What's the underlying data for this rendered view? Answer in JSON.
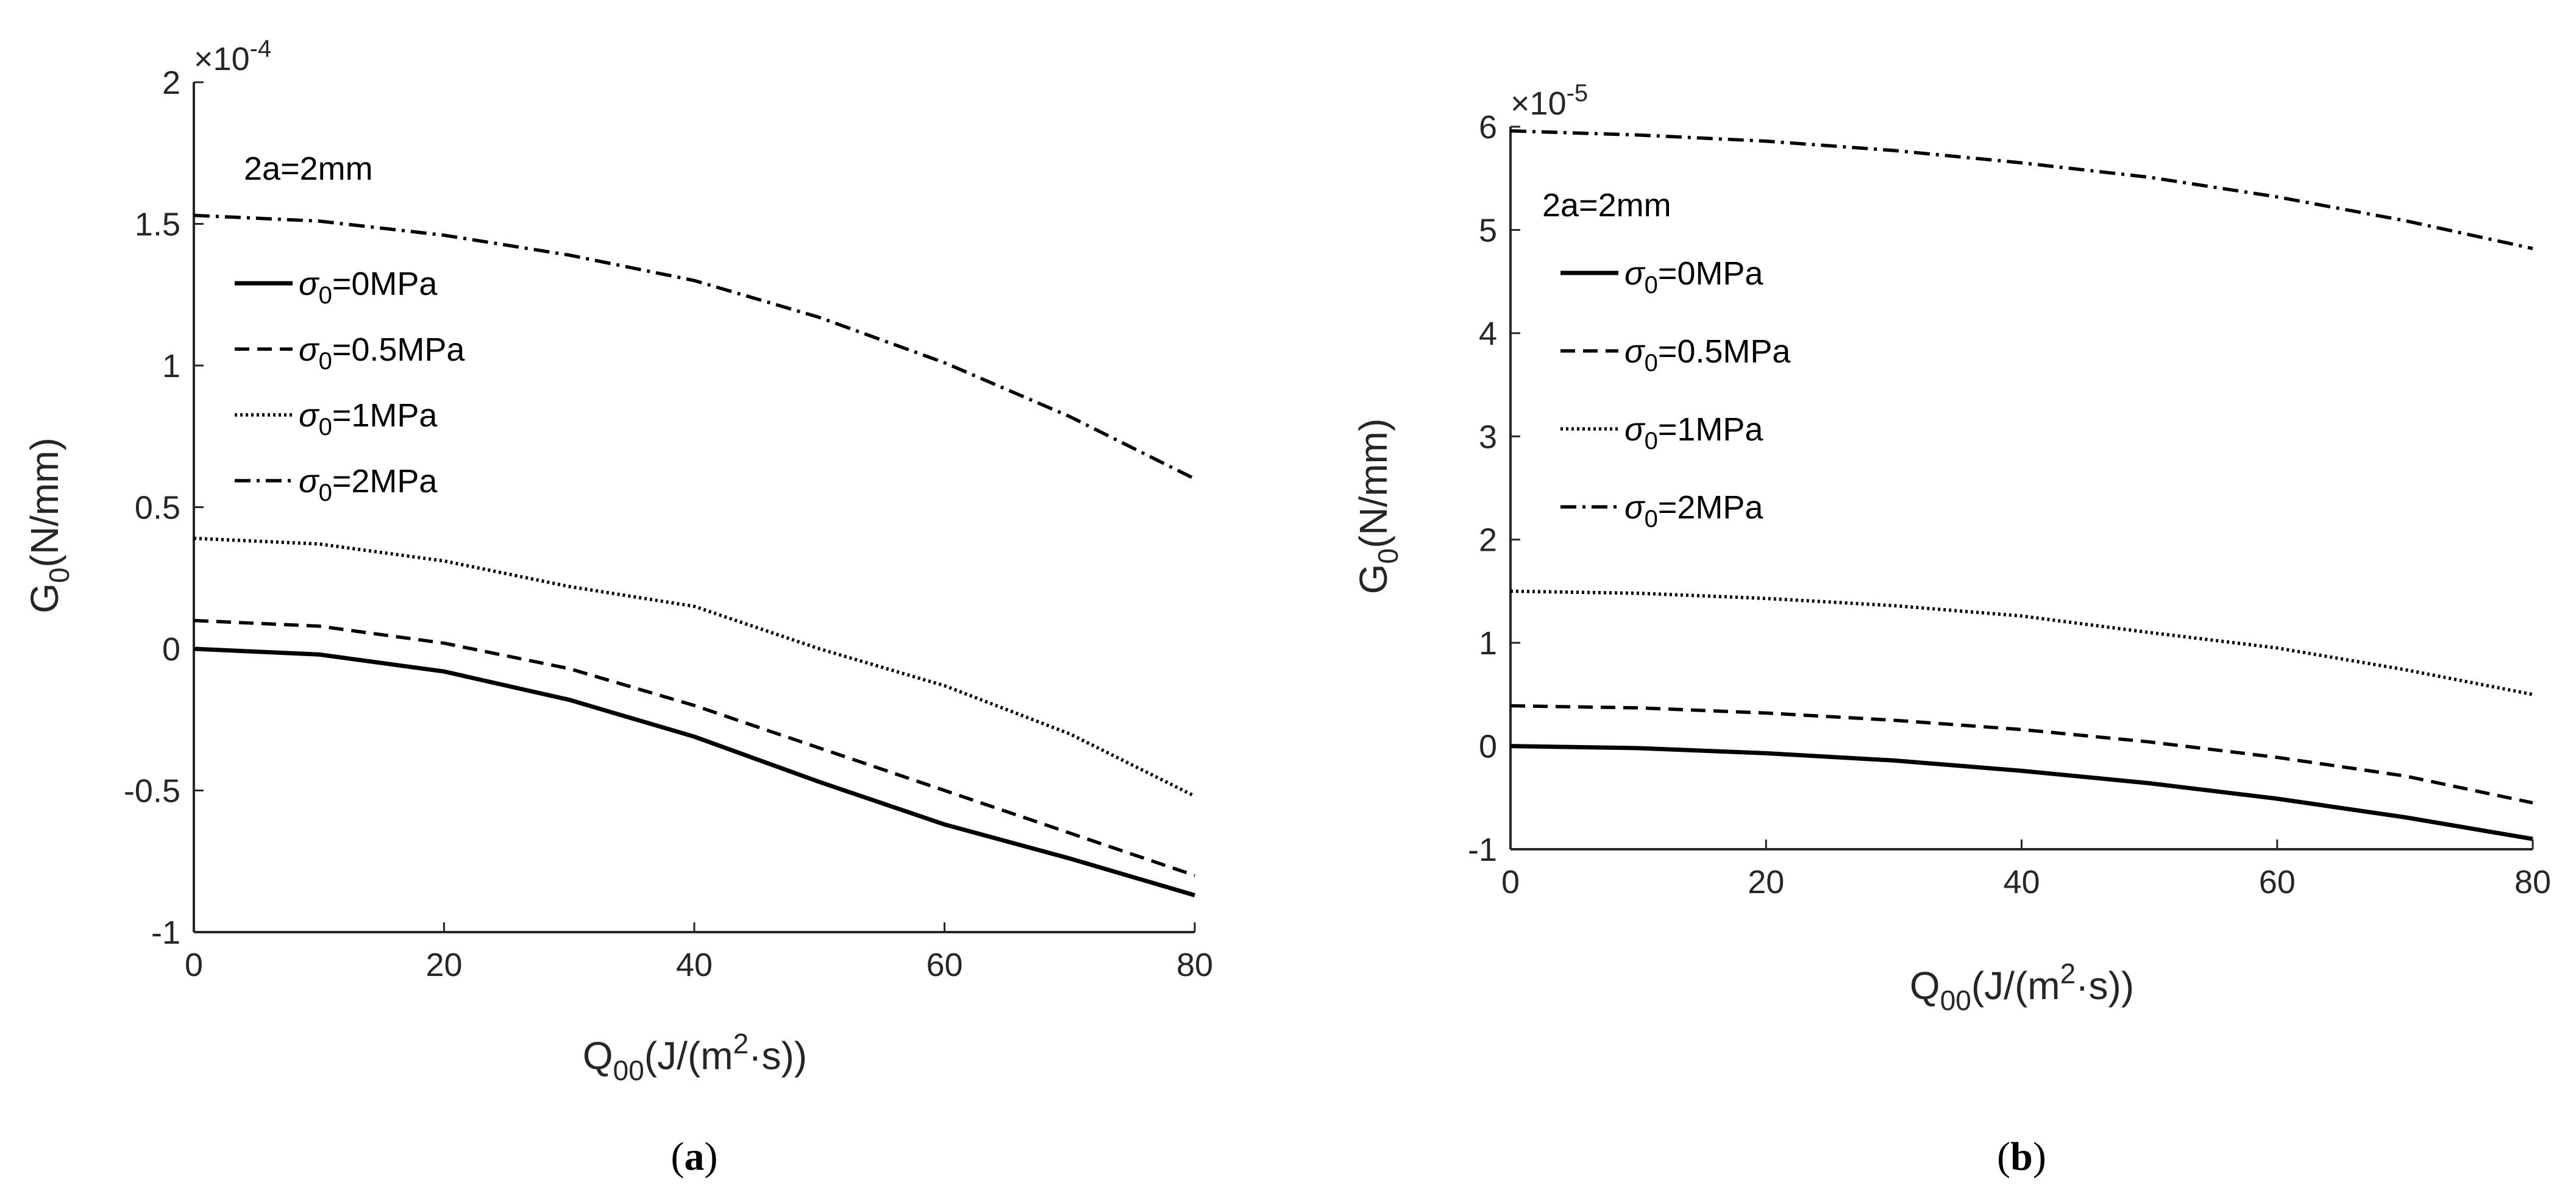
{
  "chart_data": [
    {
      "type": "line",
      "panel": "a",
      "annotation": "2a=2mm",
      "exponent": "-4",
      "exponent_prefix": "×10",
      "xlabel": {
        "base": "Q",
        "sub": "00",
        "unit_pre": "(J/(m",
        "sup": "2",
        "unit_post": "·s))"
      },
      "ylabel": {
        "base": "G",
        "sub": "0",
        "unit": "(N/mm)"
      },
      "xlim": [
        0,
        80
      ],
      "ylim": [
        -1,
        2
      ],
      "xticks": [
        0,
        20,
        40,
        60,
        80
      ],
      "yticks": [
        -1,
        -0.5,
        0,
        0.5,
        1,
        1.5,
        2
      ],
      "ytick_labels": [
        "-1",
        "-0.5",
        "0",
        "0.5",
        "1",
        "1.5",
        "2"
      ],
      "x": [
        0,
        10,
        20,
        30,
        40,
        50,
        60,
        70,
        80
      ],
      "series": [
        {
          "name": "σ0=0MPa",
          "sym": "σ",
          "sub": "0",
          "rest": "=0MPa",
          "style": "solid",
          "values": [
            0.0,
            -0.02,
            -0.08,
            -0.18,
            -0.31,
            -0.47,
            -0.62,
            -0.74,
            -0.87
          ]
        },
        {
          "name": "σ0=0.5MPa",
          "sym": "σ",
          "sub": "0",
          "rest": "=0.5MPa",
          "style": "dashed",
          "values": [
            0.1,
            0.08,
            0.02,
            -0.07,
            -0.2,
            -0.35,
            -0.5,
            -0.65,
            -0.8
          ]
        },
        {
          "name": "σ0=1MPa",
          "sym": "σ",
          "sub": "0",
          "rest": "=1MPa",
          "style": "dotted",
          "values": [
            0.39,
            0.37,
            0.31,
            0.22,
            0.15,
            0.0,
            -0.13,
            -0.3,
            -0.52
          ]
        },
        {
          "name": "σ0=2MPa",
          "sym": "σ",
          "sub": "0",
          "rest": "=2MPa",
          "style": "dashdot",
          "values": [
            1.53,
            1.51,
            1.46,
            1.39,
            1.3,
            1.17,
            1.01,
            0.82,
            0.6
          ]
        }
      ]
    },
    {
      "type": "line",
      "panel": "b",
      "annotation": "2a=2mm",
      "exponent": "-5",
      "exponent_prefix": "×10",
      "xlabel": {
        "base": "Q",
        "sub": "00",
        "unit_pre": "(J/(m",
        "sup": "2",
        "unit_post": "·s))"
      },
      "ylabel": {
        "base": "G",
        "sub": "0",
        "unit": "(N/mm)"
      },
      "xlim": [
        0,
        80
      ],
      "ylim": [
        -1,
        6
      ],
      "xticks": [
        0,
        20,
        40,
        60,
        80
      ],
      "yticks": [
        -1,
        0,
        1,
        2,
        3,
        4,
        5,
        6
      ],
      "ytick_labels": [
        "-1",
        "0",
        "1",
        "2",
        "3",
        "4",
        "5",
        "6"
      ],
      "x": [
        0,
        10,
        20,
        30,
        40,
        50,
        60,
        70,
        80
      ],
      "series": [
        {
          "name": "σ0=0MPa",
          "sym": "σ",
          "sub": "0",
          "rest": "=0MPa",
          "style": "solid",
          "values": [
            0.0,
            -0.02,
            -0.07,
            -0.14,
            -0.24,
            -0.36,
            -0.51,
            -0.69,
            -0.9
          ]
        },
        {
          "name": "σ0=0.5MPa",
          "sym": "σ",
          "sub": "0",
          "rest": "=0.5MPa",
          "style": "dashed",
          "values": [
            0.39,
            0.37,
            0.32,
            0.25,
            0.16,
            0.04,
            -0.11,
            -0.29,
            -0.55
          ]
        },
        {
          "name": "σ0=1MPa",
          "sym": "σ",
          "sub": "0",
          "rest": "=1MPa",
          "style": "dotted",
          "values": [
            1.5,
            1.48,
            1.43,
            1.36,
            1.26,
            1.1,
            0.95,
            0.74,
            0.5
          ]
        },
        {
          "name": "σ0=2MPa",
          "sym": "σ",
          "sub": "0",
          "rest": "=2MPa",
          "style": "dashdot",
          "values": [
            5.96,
            5.92,
            5.86,
            5.77,
            5.65,
            5.51,
            5.32,
            5.09,
            4.82
          ]
        }
      ]
    }
  ]
}
